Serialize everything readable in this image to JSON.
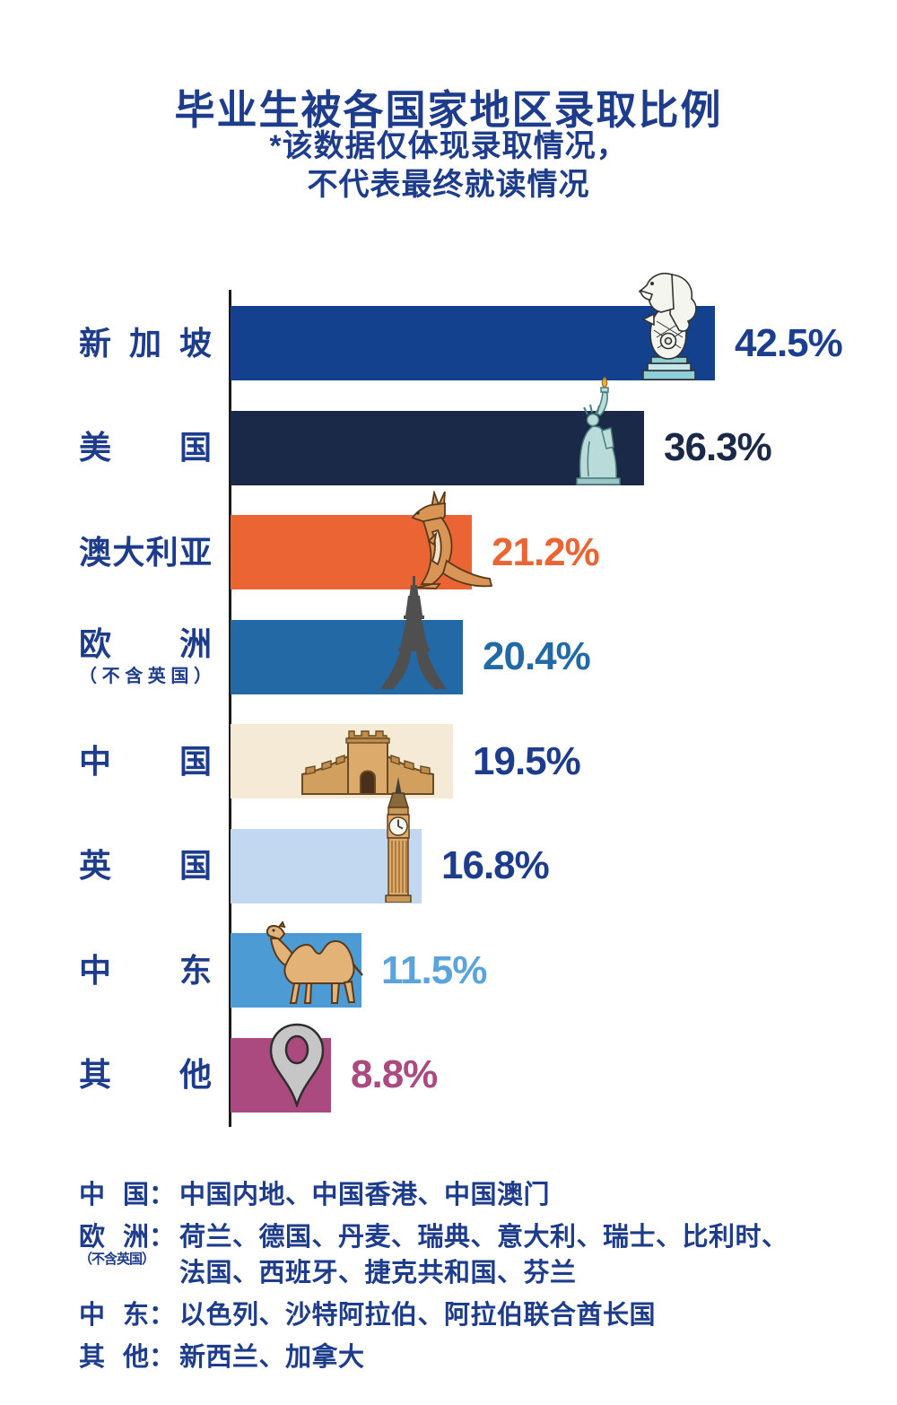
{
  "title": "毕业生被各国家地区录取比例",
  "subtitle": {
    "line1": "*该数据仅体现录取情况，",
    "line2": "不代表最终就读情况"
  },
  "colors": {
    "ink": "#1e3c8c",
    "axis": "#1b1b1b"
  },
  "chart_data": {
    "type": "bar",
    "orientation": "horizontal",
    "value_unit": "%",
    "xlim": [
      0,
      45
    ],
    "grid": false,
    "legend": false,
    "title": "毕业生被各国家地区录取比例",
    "categories": [
      "新加坡",
      "美国",
      "澳大利亚",
      "欧洲（不含英国）",
      "中国",
      "英国",
      "中东",
      "其他"
    ],
    "values": [
      42.5,
      36.3,
      21.2,
      20.4,
      19.5,
      16.8,
      11.5,
      8.8
    ],
    "bars": [
      {
        "label": "新加坡",
        "label_chars": [
          "新",
          "加",
          "坡"
        ],
        "value": 42.5,
        "display": "42.5%",
        "bar_color": "#14418e",
        "value_color": "#1c3e8e",
        "icon": "merlion-icon"
      },
      {
        "label": "美国",
        "label_chars": [
          "美",
          "国"
        ],
        "value": 36.3,
        "display": "36.3%",
        "bar_color": "#1b2948",
        "value_color": "#1b2948",
        "icon": "statue-of-liberty-icon"
      },
      {
        "label": "澳大利亚",
        "label_chars": [
          "澳",
          "大",
          "利",
          "亚"
        ],
        "value": 21.2,
        "display": "21.2%",
        "bar_color": "#eb6434",
        "value_color": "#eb6434",
        "icon": "kangaroo-icon"
      },
      {
        "label": "欧洲",
        "label_chars": [
          "欧",
          "洲"
        ],
        "sublabel": "（不含英国）",
        "sublabel_chars": [
          "（",
          "不",
          "含",
          "英",
          "国",
          "）"
        ],
        "value": 20.4,
        "display": "20.4%",
        "bar_color": "#2269a6",
        "value_color": "#2269a6",
        "icon": "eiffel-tower-icon"
      },
      {
        "label": "中国",
        "label_chars": [
          "中",
          "国"
        ],
        "value": 19.5,
        "display": "19.5%",
        "bar_color": "#f5ead6",
        "value_color": "#1e3c8c",
        "icon": "great-wall-icon"
      },
      {
        "label": "英国",
        "label_chars": [
          "英",
          "国"
        ],
        "value": 16.8,
        "display": "16.8%",
        "bar_color": "#c2d8f0",
        "value_color": "#1e3c8c",
        "icon": "big-ben-icon"
      },
      {
        "label": "中东",
        "label_chars": [
          "中",
          "东"
        ],
        "value": 11.5,
        "display": "11.5%",
        "bar_color": "#4c9bd5",
        "value_color": "#5aa3dc",
        "icon": "camel-icon"
      },
      {
        "label": "其他",
        "label_chars": [
          "其",
          "他"
        ],
        "value": 8.8,
        "display": "8.8%",
        "bar_color": "#ab4a7e",
        "value_color": "#ab4a7e",
        "icon": "location-pin-icon"
      }
    ]
  },
  "footnotes": [
    {
      "term": "中国",
      "term_chars": [
        "中",
        "国"
      ],
      "colon": "：",
      "term_note": "",
      "text": "中国内地、中国香港、中国澳门",
      "text2": ""
    },
    {
      "term": "欧洲",
      "term_chars": [
        "欧",
        "洲"
      ],
      "colon": "：",
      "term_note": "（不含英国）",
      "text": "荷兰、德国、丹麦、瑞典、意大利、瑞士、比利时、",
      "text2": "法国、西班牙、捷克共和国、芬兰"
    },
    {
      "term": "中东",
      "term_chars": [
        "中",
        "东"
      ],
      "colon": "：",
      "term_note": "",
      "text": "以色列、沙特阿拉伯、阿拉伯联合酋长国",
      "text2": ""
    },
    {
      "term": "其他",
      "term_chars": [
        "其",
        "他"
      ],
      "colon": "：",
      "term_note": "",
      "text": "新西兰、加拿大",
      "text2": ""
    }
  ]
}
